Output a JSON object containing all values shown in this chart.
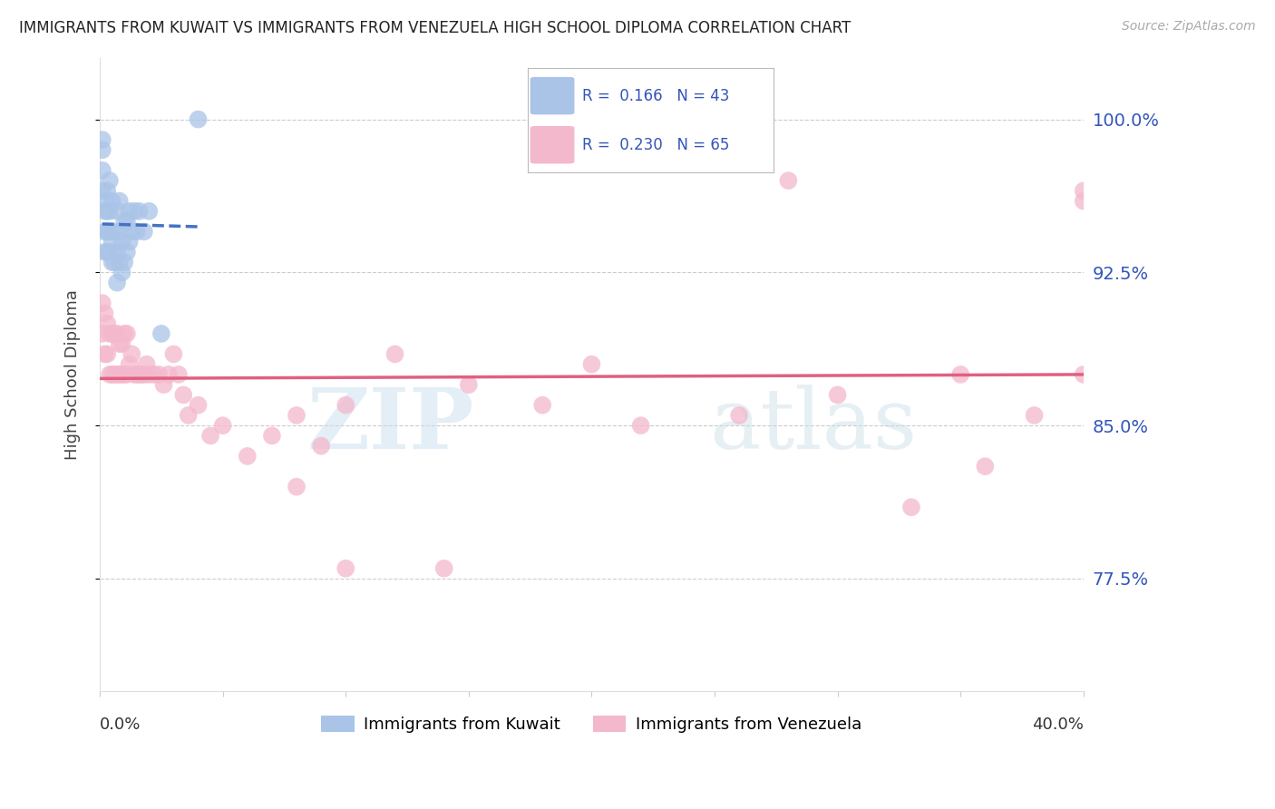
{
  "title": "IMMIGRANTS FROM KUWAIT VS IMMIGRANTS FROM VENEZUELA HIGH SCHOOL DIPLOMA CORRELATION CHART",
  "source": "Source: ZipAtlas.com",
  "ylabel": "High School Diploma",
  "yticks": [
    0.775,
    0.85,
    0.925,
    1.0
  ],
  "ytick_labels": [
    "77.5%",
    "85.0%",
    "92.5%",
    "100.0%"
  ],
  "xrange": [
    0.0,
    0.4
  ],
  "yrange": [
    0.72,
    1.03
  ],
  "kuwait_color": "#aac4e8",
  "kuwait_line_color": "#4472c4",
  "venezuela_color": "#f4b8cc",
  "venezuela_line_color": "#e06080",
  "kuwait_x": [
    0.001,
    0.001,
    0.001,
    0.001,
    0.002,
    0.002,
    0.002,
    0.002,
    0.003,
    0.003,
    0.003,
    0.003,
    0.004,
    0.004,
    0.004,
    0.004,
    0.005,
    0.005,
    0.005,
    0.006,
    0.006,
    0.007,
    0.007,
    0.007,
    0.008,
    0.008,
    0.008,
    0.009,
    0.009,
    0.01,
    0.01,
    0.011,
    0.011,
    0.012,
    0.012,
    0.013,
    0.014,
    0.015,
    0.016,
    0.018,
    0.02,
    0.025,
    0.04
  ],
  "kuwait_y": [
    0.99,
    0.985,
    0.975,
    0.965,
    0.96,
    0.955,
    0.945,
    0.935,
    0.935,
    0.945,
    0.955,
    0.965,
    0.935,
    0.945,
    0.955,
    0.97,
    0.93,
    0.94,
    0.96,
    0.93,
    0.945,
    0.92,
    0.935,
    0.955,
    0.93,
    0.945,
    0.96,
    0.925,
    0.94,
    0.93,
    0.95,
    0.935,
    0.95,
    0.94,
    0.955,
    0.945,
    0.955,
    0.945,
    0.955,
    0.945,
    0.955,
    0.895,
    1.0
  ],
  "venezuela_x": [
    0.001,
    0.001,
    0.002,
    0.002,
    0.003,
    0.003,
    0.004,
    0.004,
    0.005,
    0.005,
    0.006,
    0.006,
    0.007,
    0.007,
    0.008,
    0.008,
    0.009,
    0.009,
    0.01,
    0.01,
    0.011,
    0.011,
    0.012,
    0.013,
    0.014,
    0.015,
    0.016,
    0.017,
    0.018,
    0.019,
    0.02,
    0.022,
    0.024,
    0.026,
    0.028,
    0.03,
    0.032,
    0.034,
    0.036,
    0.04,
    0.045,
    0.05,
    0.06,
    0.07,
    0.08,
    0.09,
    0.1,
    0.12,
    0.15,
    0.18,
    0.22,
    0.26,
    0.3,
    0.33,
    0.36,
    0.38,
    0.4,
    0.4,
    0.4,
    0.35,
    0.28,
    0.2,
    0.14,
    0.1,
    0.08
  ],
  "venezuela_y": [
    0.895,
    0.91,
    0.885,
    0.905,
    0.885,
    0.9,
    0.875,
    0.895,
    0.875,
    0.895,
    0.875,
    0.895,
    0.875,
    0.895,
    0.875,
    0.89,
    0.875,
    0.89,
    0.875,
    0.895,
    0.875,
    0.895,
    0.88,
    0.885,
    0.875,
    0.875,
    0.875,
    0.875,
    0.875,
    0.88,
    0.875,
    0.875,
    0.875,
    0.87,
    0.875,
    0.885,
    0.875,
    0.865,
    0.855,
    0.86,
    0.845,
    0.85,
    0.835,
    0.845,
    0.855,
    0.84,
    0.86,
    0.885,
    0.87,
    0.86,
    0.85,
    0.855,
    0.865,
    0.81,
    0.83,
    0.855,
    0.965,
    0.96,
    0.875,
    0.875,
    0.97,
    0.88,
    0.78,
    0.78,
    0.82
  ]
}
